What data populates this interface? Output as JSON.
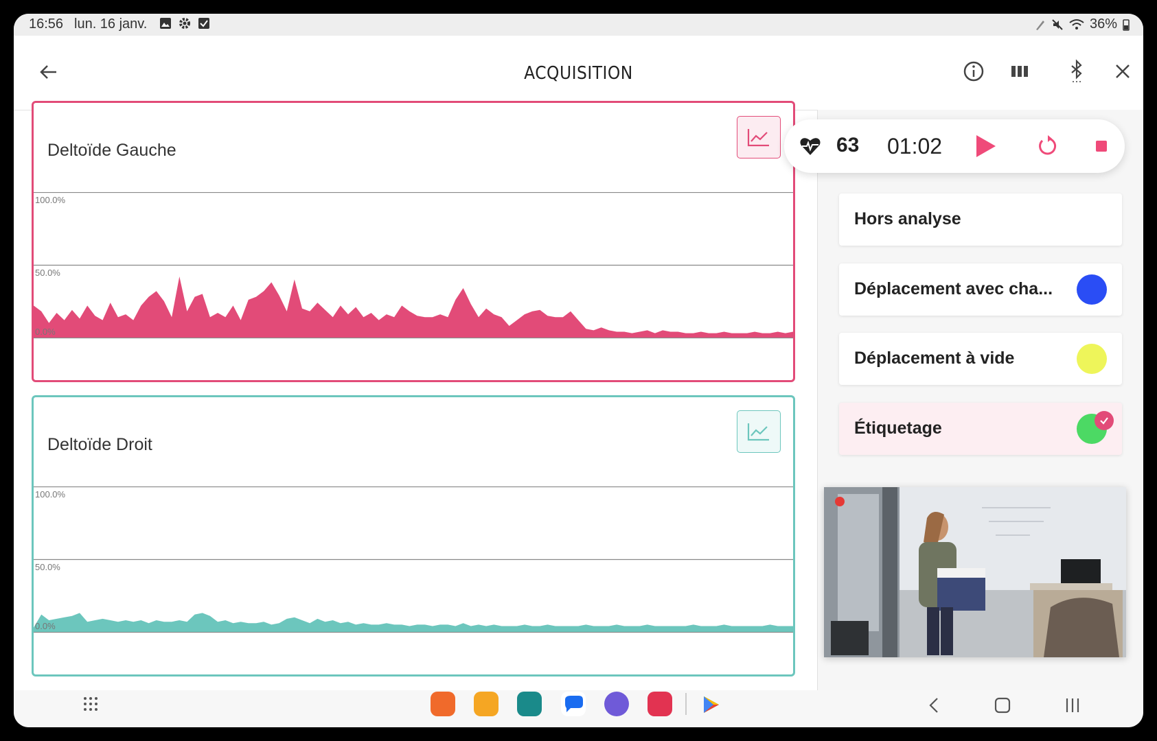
{
  "status_bar": {
    "time": "16:56",
    "date": "lun. 16 janv.",
    "battery": "36%"
  },
  "header": {
    "title": "ACQUISITION"
  },
  "charts": [
    {
      "title": "Deltoïde Gauche",
      "color": "#e24b78",
      "y_ticks": [
        "100.0%",
        "50.0%",
        "0.0%"
      ]
    },
    {
      "title": "Deltoïde Droit",
      "color": "#6cc6bd",
      "y_ticks": [
        "100.0%",
        "50.0%",
        "0.0%"
      ]
    }
  ],
  "chart_data": [
    {
      "type": "area",
      "ylim": [
        0,
        100
      ],
      "y_tick_labels": [
        "100.0%",
        "50.0%",
        "0.0%"
      ],
      "series": [
        {
          "values": [
            22,
            18,
            10,
            17,
            12,
            19,
            13,
            22,
            15,
            12,
            24,
            14,
            16,
            12,
            22,
            28,
            32,
            25,
            14,
            42,
            18,
            28,
            30,
            14,
            17,
            14,
            22,
            12,
            26,
            28,
            32,
            38,
            29,
            18,
            40,
            20,
            18,
            24,
            19,
            14,
            22,
            16,
            21,
            14,
            17,
            12,
            16,
            14,
            22,
            18,
            15,
            14,
            14,
            16,
            14,
            26,
            34,
            23,
            14,
            20,
            16,
            14,
            8,
            12,
            16,
            18,
            19,
            15,
            14,
            14,
            18,
            12,
            6,
            5,
            7,
            5,
            4,
            4,
            3,
            4,
            5,
            3,
            5,
            4,
            4,
            3,
            3,
            4,
            3,
            3,
            4,
            3,
            3,
            3,
            4,
            3,
            3,
            4,
            3,
            4
          ]
        }
      ]
    },
    {
      "type": "area",
      "ylim": [
        0,
        100
      ],
      "y_tick_labels": [
        "100.0%",
        "50.0%",
        "0.0%"
      ],
      "series": [
        {
          "values": [
            3,
            12,
            8,
            9,
            10,
            11,
            13,
            7,
            8,
            9,
            8,
            7,
            8,
            7,
            8,
            6,
            8,
            7,
            7,
            8,
            7,
            12,
            13,
            11,
            7,
            8,
            6,
            7,
            6,
            6,
            7,
            5,
            6,
            9,
            10,
            8,
            6,
            9,
            7,
            8,
            6,
            7,
            5,
            6,
            5,
            5,
            6,
            5,
            5,
            4,
            5,
            5,
            4,
            5,
            5,
            4,
            6,
            4,
            5,
            4,
            5,
            4,
            4,
            4,
            5,
            4,
            4,
            5,
            4,
            4,
            4,
            4,
            5,
            4,
            4,
            4,
            5,
            4,
            4,
            4,
            5,
            4,
            4,
            4,
            4,
            4,
            5,
            4,
            4,
            4,
            5,
            4,
            4,
            4,
            4,
            4,
            5,
            4,
            4,
            4
          ]
        }
      ]
    }
  ],
  "controls": {
    "heart_rate": "63",
    "timer": "01:02"
  },
  "labels": [
    {
      "text": "Hors analyse",
      "color": ""
    },
    {
      "text": "Déplacement avec cha...",
      "color": "#2a4df5"
    },
    {
      "text": "Déplacement à vide",
      "color": "#eef55a"
    },
    {
      "text": "Étiquetage",
      "color": "#4cd964",
      "selected": true
    }
  ]
}
